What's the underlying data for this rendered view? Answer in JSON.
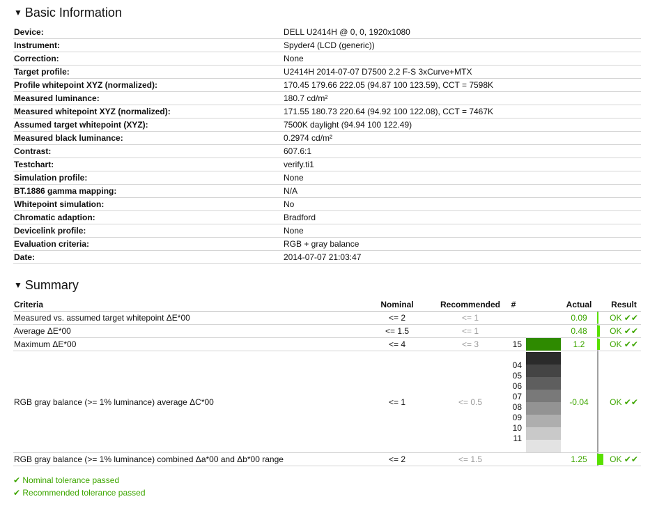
{
  "basic": {
    "title": "Basic Information",
    "rows": [
      {
        "label": "Device:",
        "value": "DELL U2414H @ 0, 0, 1920x1080"
      },
      {
        "label": "Instrument:",
        "value": "Spyder4 (LCD (generic))"
      },
      {
        "label": "Correction:",
        "value": "None"
      },
      {
        "label": "Target profile:",
        "value": "U2414H 2014-07-07 D7500 2.2 F-S 3xCurve+MTX"
      },
      {
        "label": "Profile whitepoint XYZ (normalized):",
        "value": "170.45 179.66 222.05 (94.87 100 123.59), CCT = 7598K"
      },
      {
        "label": "Measured luminance:",
        "value": "180.7 cd/m²"
      },
      {
        "label": "Measured whitepoint XYZ (normalized):",
        "value": "171.55 180.73 220.64 (94.92 100 122.08), CCT = 7467K"
      },
      {
        "label": "Assumed target whitepoint (XYZ):",
        "value": "7500K daylight (94.94 100 122.49)"
      },
      {
        "label": "Measured black luminance:",
        "value": "0.2974 cd/m²"
      },
      {
        "label": "Contrast:",
        "value": "607.6:1"
      },
      {
        "label": "Testchart:",
        "value": "verify.ti1"
      },
      {
        "label": "Simulation profile:",
        "value": "None"
      },
      {
        "label": "BT.1886 gamma mapping:",
        "value": "N/A"
      },
      {
        "label": "Whitepoint simulation:",
        "value": "No"
      },
      {
        "label": "Chromatic adaption:",
        "value": "Bradford"
      },
      {
        "label": "Devicelink profile:",
        "value": "None"
      },
      {
        "label": "Evaluation criteria:",
        "value": "RGB + gray balance"
      },
      {
        "label": "Date:",
        "value": "2014-07-07 21:03:47"
      }
    ]
  },
  "summary": {
    "title": "Summary",
    "headers": {
      "criteria": "Criteria",
      "nominal": "Nominal",
      "recommended": "Recommended",
      "hash": "#",
      "actual": "Actual",
      "result": "Result"
    },
    "rows": [
      {
        "criteria": "Measured vs. assumed target whitepoint ΔE*00",
        "nominal": "<= 2",
        "recommended": "<= 1",
        "hash": "",
        "actual": "0.09",
        "result": "OK ✔✔",
        "bar": 0.045
      },
      {
        "criteria": "Average ΔE*00",
        "nominal": "<= 1.5",
        "recommended": "<= 1",
        "hash": "",
        "actual": "0.48",
        "result": "OK ✔✔",
        "bar": 0.32
      },
      {
        "criteria": "Maximum ΔE*00",
        "nominal": "<= 4",
        "recommended": "<= 3",
        "hash": "15",
        "actual": "1.2",
        "result": "OK ✔✔",
        "bar": 0.3,
        "swatch": "#2e8a00"
      },
      {
        "criteria": "RGB gray balance (>= 1% luminance) average ΔC*00",
        "nominal": "<= 1",
        "recommended": "<= 0.5",
        "actual": "-0.04",
        "result": "OK ✔✔",
        "bar": 0,
        "gray_numbers": [
          "04",
          "05",
          "06",
          "07",
          "08",
          "09",
          "10",
          "11"
        ]
      },
      {
        "criteria": "RGB gray balance (>= 1% luminance) combined Δa*00 and Δb*00 range",
        "nominal": "<= 2",
        "recommended": "<= 1.5",
        "hash": "",
        "actual": "1.25",
        "result": "OK ✔✔",
        "bar": 0.625
      }
    ],
    "gray_swatches": [
      "#2b2b2b",
      "#444444",
      "#5e5e5e",
      "#797979",
      "#939393",
      "#aeaeae",
      "#c9c9c9",
      "#e3e3e3"
    ],
    "bar_color": "#59e000"
  },
  "footer": {
    "nominal_passed": "✔ Nominal tolerance passed",
    "recommended_passed": "✔ Recommended tolerance passed"
  },
  "colors": {
    "pass": "#3ea600",
    "muted": "#9a9a9a"
  }
}
